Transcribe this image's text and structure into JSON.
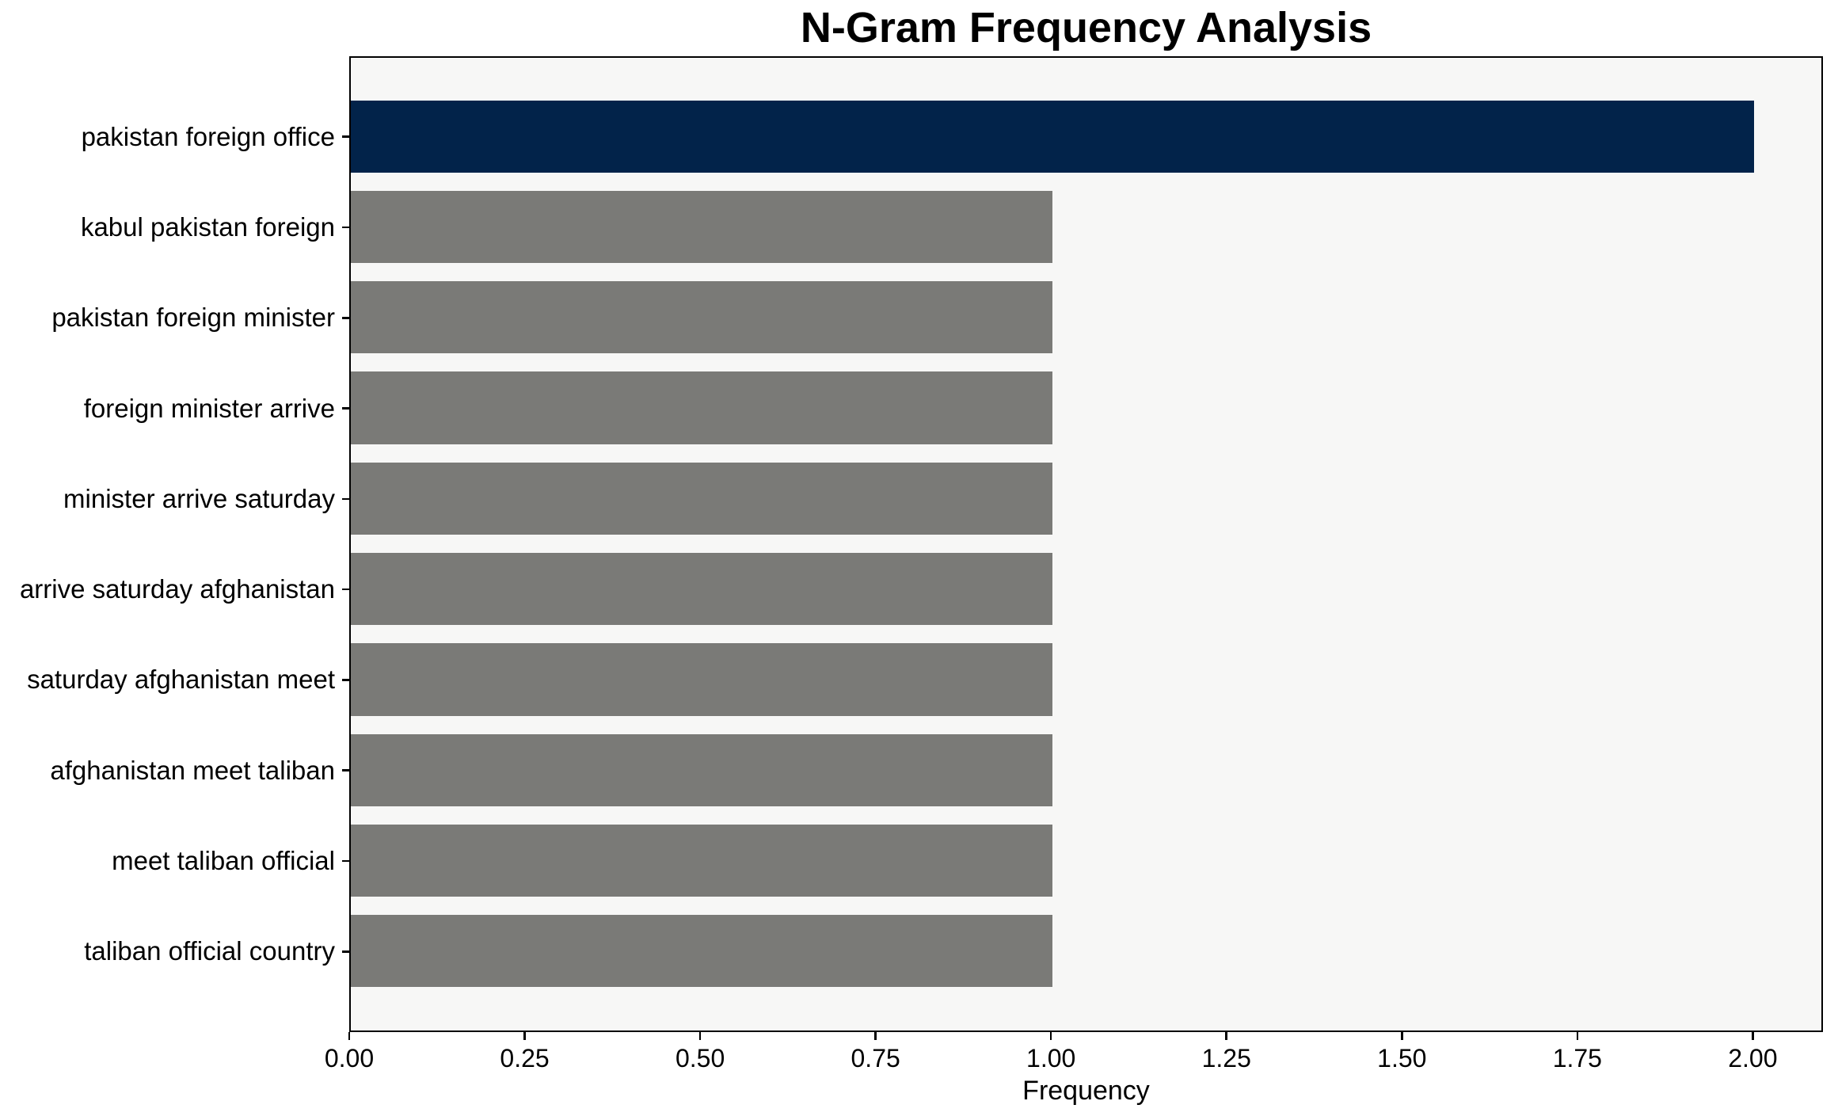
{
  "chart_data": {
    "type": "bar",
    "orientation": "horizontal",
    "title": "N-Gram Frequency Analysis",
    "xlabel": "Frequency",
    "ylabel": "",
    "categories": [
      "pakistan foreign office",
      "kabul pakistan foreign",
      "pakistan foreign minister",
      "foreign minister arrive",
      "minister arrive saturday",
      "arrive saturday afghanistan",
      "saturday afghanistan meet",
      "afghanistan meet taliban",
      "meet taliban official",
      "taliban official country"
    ],
    "values": [
      2,
      1,
      1,
      1,
      1,
      1,
      1,
      1,
      1,
      1
    ],
    "highlight_index": 0,
    "xlim": [
      0,
      2.1
    ],
    "xticks": [
      "0.00",
      "0.25",
      "0.50",
      "0.75",
      "1.00",
      "1.25",
      "1.50",
      "1.75",
      "2.00"
    ],
    "grid": false,
    "legend": null,
    "colors": {
      "highlight_bar": "#02234a",
      "default_bar": "#7a7a77",
      "plot_background": "#f7f7f6",
      "figure_background": "#ffffff",
      "axis": "#000000",
      "text": "#000000"
    }
  }
}
